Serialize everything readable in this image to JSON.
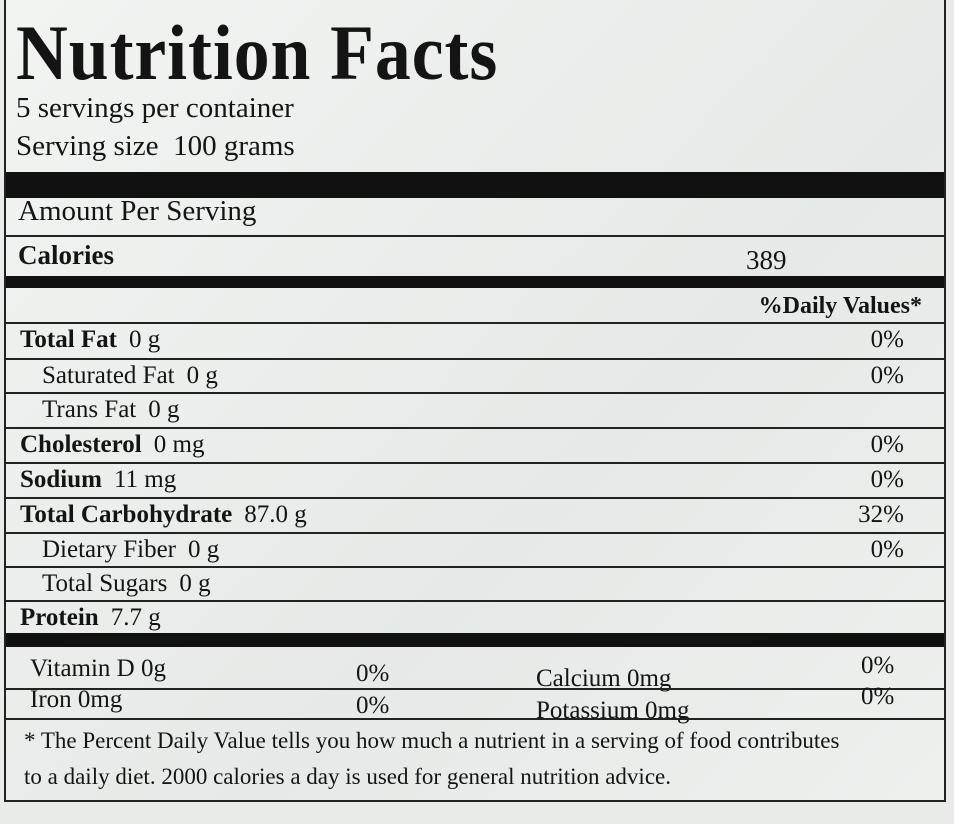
{
  "title": "Nutrition Facts",
  "servings_per_container": "5 servings per container",
  "serving_size_label": "Serving size",
  "serving_size_value": "100 grams",
  "amount_per_serving": "Amount Per Serving",
  "calories_label": "Calories",
  "calories_value": "389",
  "daily_values_header": "%Daily Values*",
  "nutrients": [
    {
      "name": "Total Fat",
      "amount": "0 g",
      "dv": "0%",
      "bold": true
    },
    {
      "name": "Saturated Fat",
      "amount": "0 g",
      "dv": "0%",
      "bold": false
    },
    {
      "name": "Trans Fat",
      "amount": "0 g",
      "dv": "",
      "bold": false
    },
    {
      "name": "Cholesterol",
      "amount": "0 mg",
      "dv": "0%",
      "bold": true
    },
    {
      "name": "Sodium",
      "amount": "11 mg",
      "dv": "0%",
      "bold": true
    },
    {
      "name": "Total Carbohydrate",
      "amount": "87.0 g",
      "dv": "32%",
      "bold": true
    },
    {
      "name": "Dietary Fiber",
      "amount": "0 g",
      "dv": "0%",
      "bold": false
    },
    {
      "name": "Total Sugars",
      "amount": "0 g",
      "dv": "",
      "bold": false
    },
    {
      "name": "Protein",
      "amount": "7.7 g",
      "dv": "",
      "bold": true
    }
  ],
  "vitamins": [
    {
      "name": "Vitamin D 0g",
      "dv": "0%"
    },
    {
      "name": "Calcium 0mg",
      "dv": "0%"
    },
    {
      "name": "Iron 0mg",
      "dv": "0%"
    },
    {
      "name": "Potassium 0mg",
      "dv": "0%"
    }
  ],
  "footnote_line1": "* The Percent Daily Value tells you how much a nutrient in a serving of food contributes",
  "footnote_line2": "to a daily diet. 2000 calories a day is used for general nutrition advice."
}
